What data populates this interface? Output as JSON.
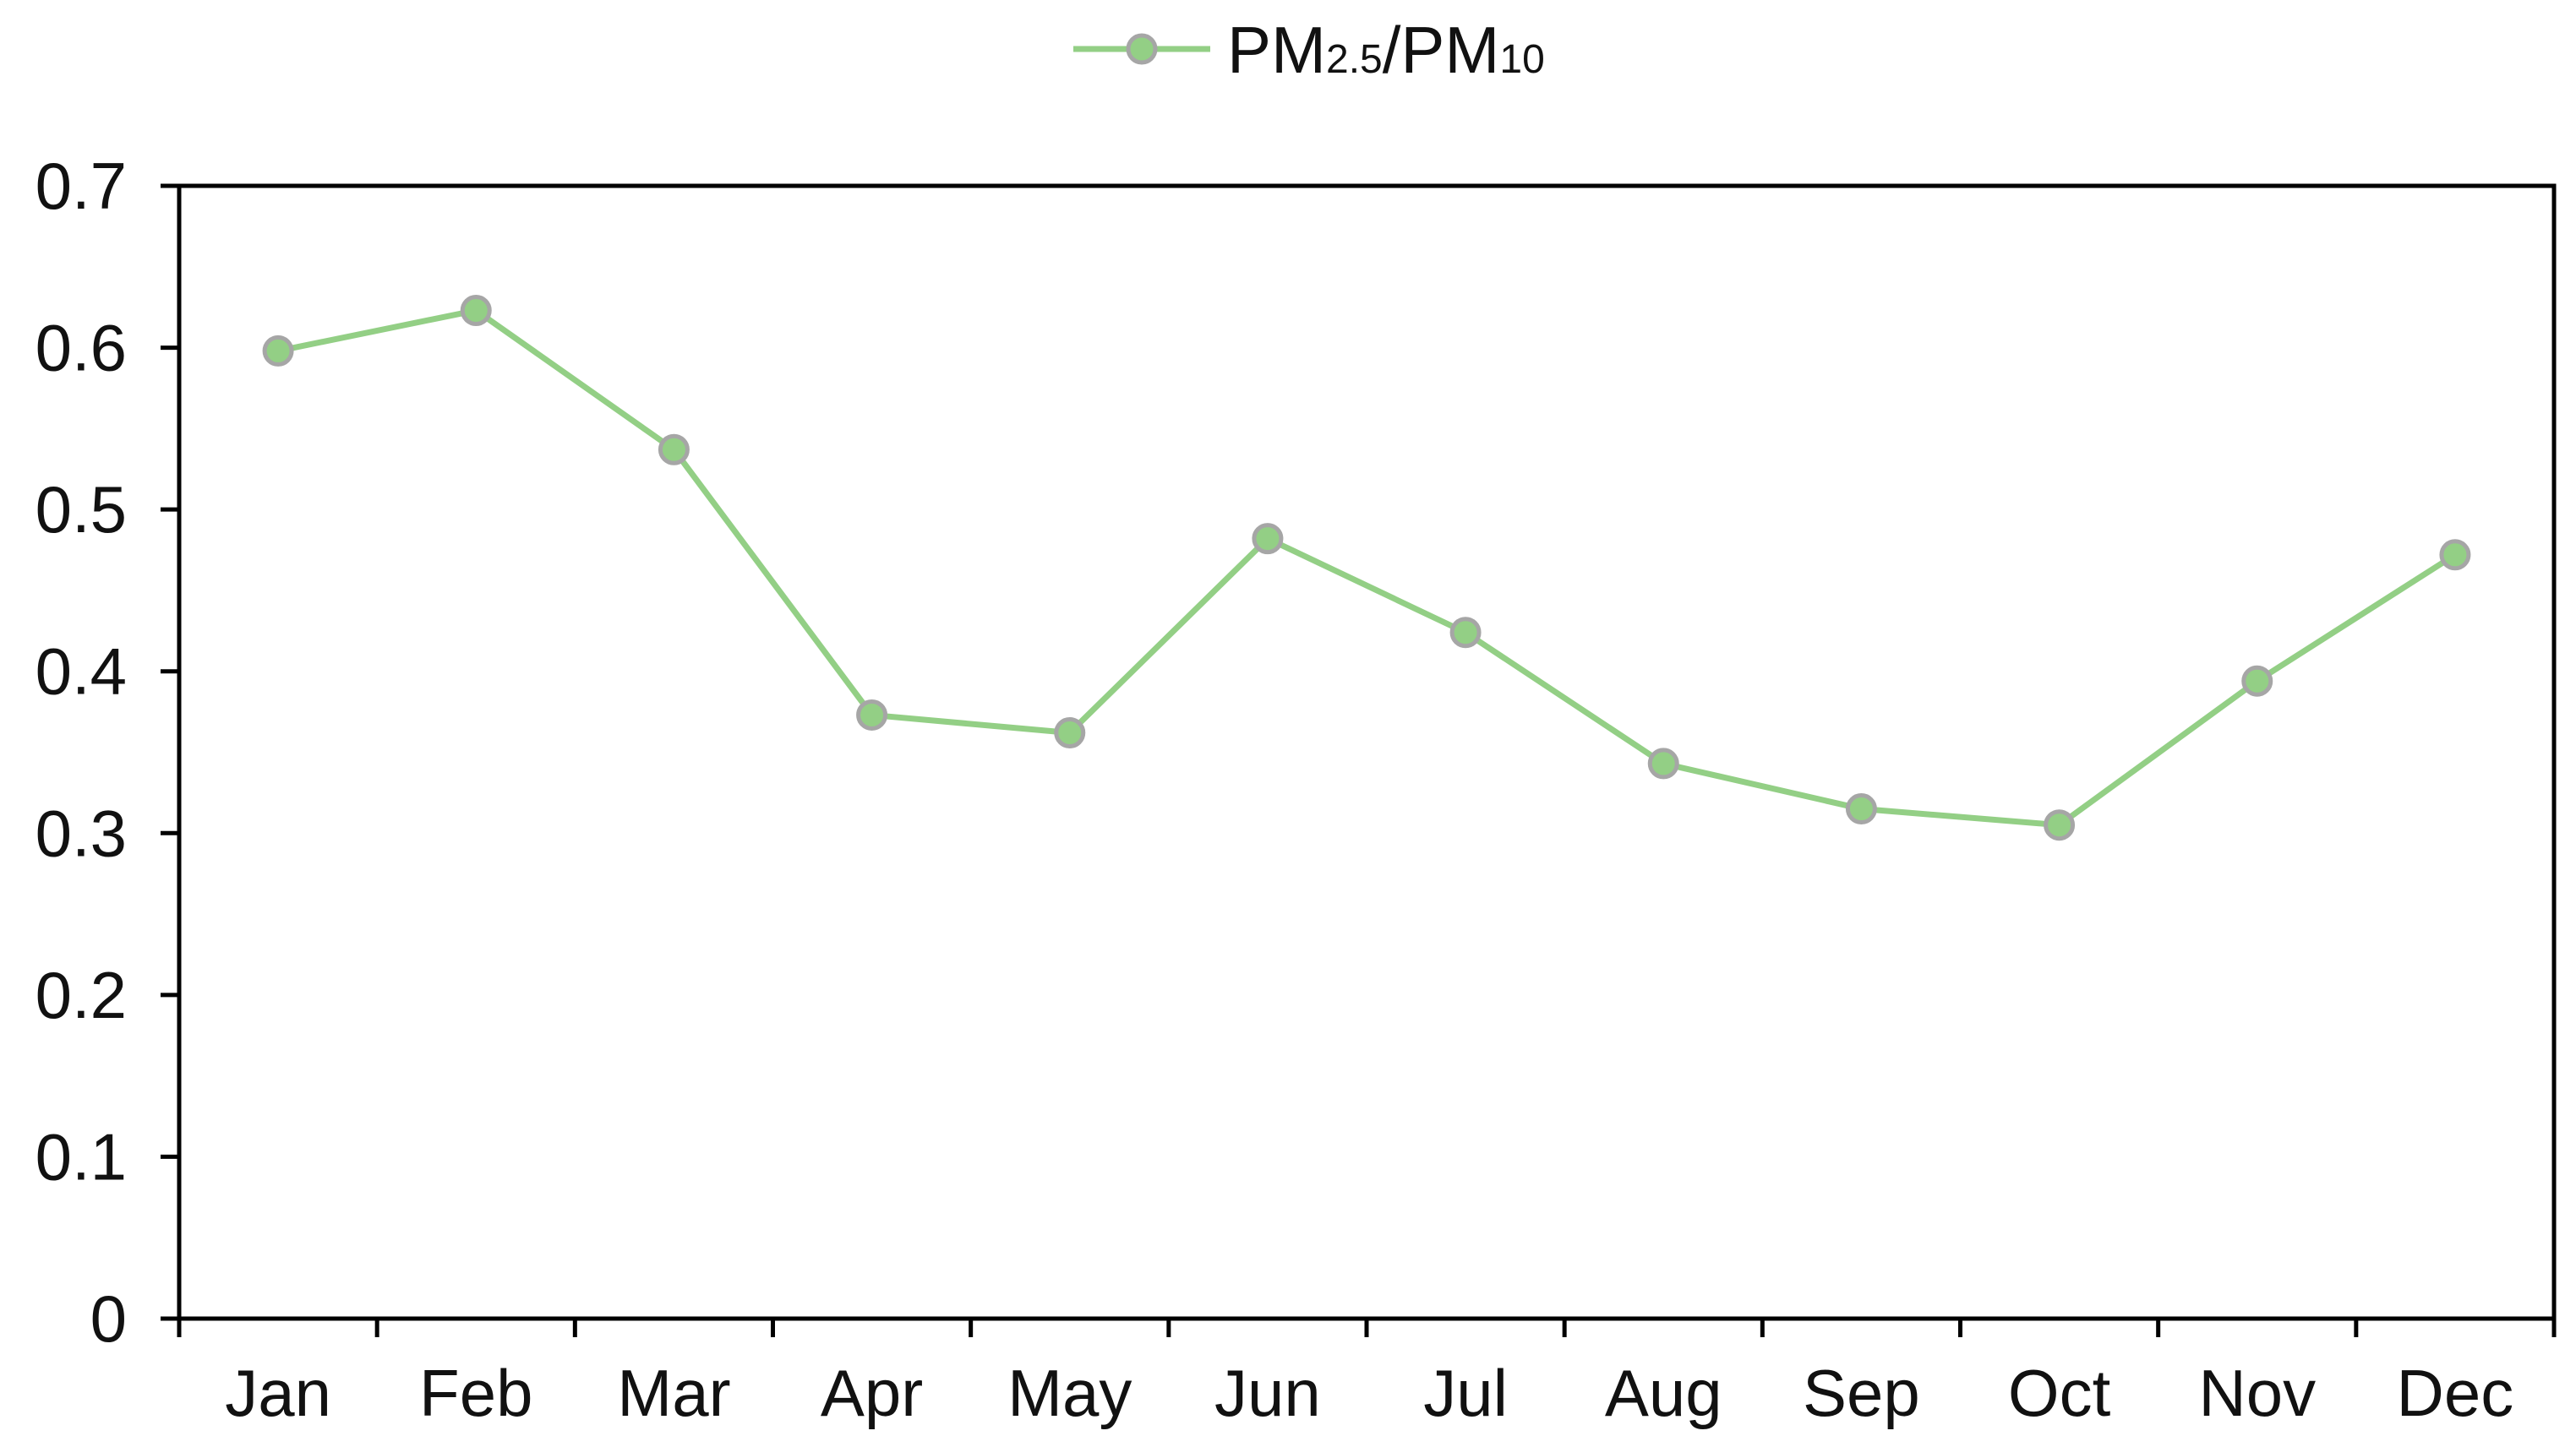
{
  "chart_data": {
    "type": "line",
    "title": "",
    "xlabel": "",
    "ylabel": "",
    "categories": [
      "Jan",
      "Feb",
      "Mar",
      "Apr",
      "May",
      "Jun",
      "Jul",
      "Aug",
      "Sep",
      "Oct",
      "Nov",
      "Dec"
    ],
    "series": [
      {
        "name": "PM2.5/PM10",
        "legend_main": "PM",
        "legend_sub1": "2.5",
        "legend_sep": "/PM",
        "legend_sub2": "10",
        "color": "#93cf85",
        "marker_fill": "#93cf85",
        "marker_stroke": "#a6a6a6",
        "values": [
          0.598,
          0.623,
          0.537,
          0.373,
          0.362,
          0.482,
          0.424,
          0.343,
          0.315,
          0.305,
          0.394,
          0.472
        ]
      }
    ],
    "ylim": [
      0,
      0.7
    ],
    "yticks": [
      "0",
      "0.1",
      "0.2",
      "0.3",
      "0.4",
      "0.5",
      "0.6",
      "0.7"
    ],
    "ytick_values": [
      0,
      0.1,
      0.2,
      0.3,
      0.4,
      0.5,
      0.6,
      0.7
    ],
    "grid": false,
    "legend_position": "top-center"
  }
}
